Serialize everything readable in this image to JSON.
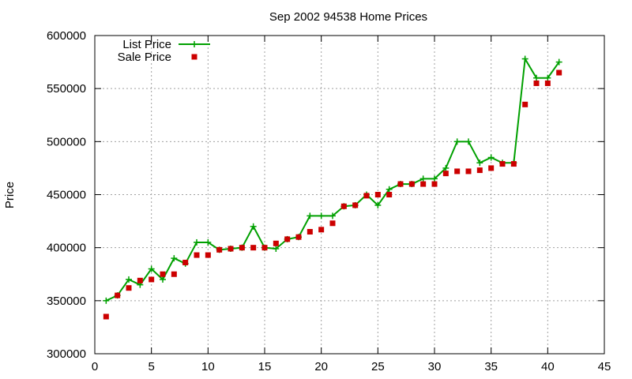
{
  "chart_data": {
    "type": "line",
    "title": "Sep 2002 94538 Home Prices",
    "xlabel": "",
    "ylabel": "Price",
    "xlim": [
      0,
      45
    ],
    "ylim": [
      300000,
      600000
    ],
    "xticks": [
      0,
      5,
      10,
      15,
      20,
      25,
      30,
      35,
      40,
      45
    ],
    "yticks": [
      300000,
      350000,
      400000,
      450000,
      500000,
      550000,
      600000
    ],
    "grid": true,
    "legend_position": "top-left",
    "x": [
      1,
      2,
      3,
      4,
      5,
      6,
      7,
      8,
      9,
      10,
      11,
      12,
      13,
      14,
      15,
      16,
      17,
      18,
      19,
      20,
      21,
      22,
      23,
      24,
      25,
      26,
      27,
      28,
      29,
      30,
      31,
      32,
      33,
      34,
      35,
      36,
      37,
      38,
      39,
      40,
      41
    ],
    "series": [
      {
        "name": "List Price",
        "style": "linespoints",
        "color": "#00a000",
        "marker": "plus",
        "values": [
          350000,
          355000,
          370000,
          365000,
          380000,
          370000,
          390000,
          385000,
          405000,
          405000,
          398000,
          399000,
          400000,
          420000,
          400000,
          399000,
          408000,
          410000,
          430000,
          430000,
          430000,
          439000,
          440000,
          450000,
          440000,
          455000,
          460000,
          460000,
          465000,
          465000,
          475000,
          500000,
          500000,
          480000,
          485000,
          480000,
          480000,
          578000,
          560000,
          560000,
          575000
        ]
      },
      {
        "name": "Sale Price",
        "style": "points",
        "color": "#cc0000",
        "marker": "square",
        "values": [
          335000,
          355000,
          362000,
          369000,
          370000,
          375000,
          375000,
          386000,
          393000,
          393000,
          398000,
          399000,
          400000,
          400000,
          400000,
          404000,
          408000,
          410000,
          415000,
          417000,
          423000,
          439000,
          440000,
          449000,
          450000,
          450000,
          460000,
          460000,
          460000,
          460000,
          470000,
          472000,
          472000,
          473000,
          475000,
          479000,
          479000,
          535000,
          555000,
          555000,
          565000
        ]
      }
    ]
  }
}
